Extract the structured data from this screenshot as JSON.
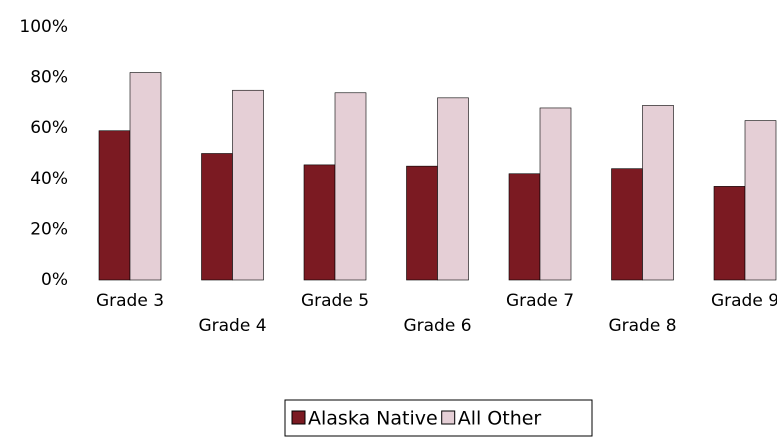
{
  "chart_data": {
    "type": "bar",
    "categories": [
      "Grade 3",
      "Grade 4",
      "Grade 5",
      "Grade 6",
      "Grade 7",
      "Grade 8",
      "Grade 9"
    ],
    "series": [
      {
        "name": "Alaska Native",
        "color": "#7b1a22",
        "values": [
          59,
          50,
          45.5,
          45,
          42,
          44,
          37
        ]
      },
      {
        "name": "All Other",
        "color": "#e5cfd6",
        "values": [
          82,
          75,
          74,
          72,
          68,
          69,
          63
        ]
      }
    ],
    "ylim": [
      0,
      100
    ],
    "yticks": [
      {
        "value": 0,
        "label": "0%"
      },
      {
        "value": 20,
        "label": "20%"
      },
      {
        "value": 40,
        "label": "40%"
      },
      {
        "value": 60,
        "label": "60%"
      },
      {
        "value": 80,
        "label": "80%"
      },
      {
        "value": 100,
        "label": "100%"
      }
    ],
    "legend": "bottom"
  }
}
